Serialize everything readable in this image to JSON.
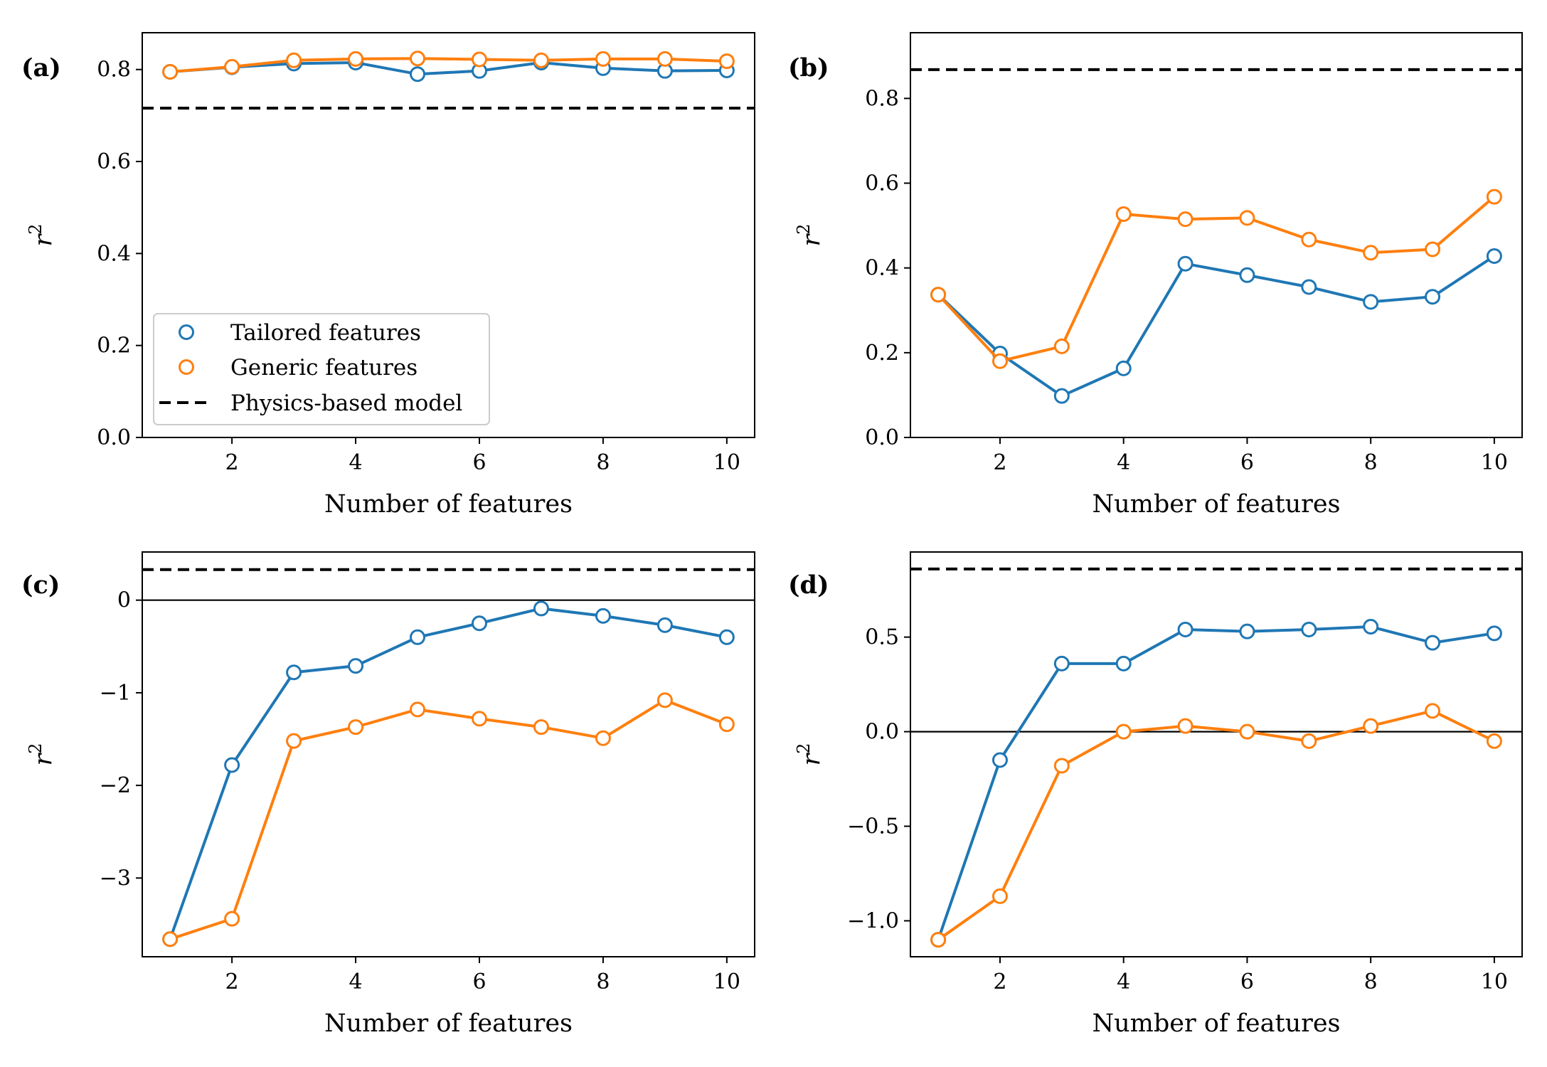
{
  "colors": {
    "tailored": "#1f77b4",
    "generic": "#ff7f0e",
    "physics": "#000000"
  },
  "legend": {
    "placement": "lower-left of panel (a)",
    "tailored_label": "Tailored features",
    "generic_label": "Generic features",
    "physics_label": "Physics-based model"
  },
  "chart_data": [
    {
      "type": "line",
      "panel_label": "(a)",
      "xlabel": "Number of features",
      "ylabel": "r",
      "ylabel_sup": "2",
      "xlim": [
        0.55,
        10.45
      ],
      "ylim": [
        0.0,
        0.88
      ],
      "xticks": [
        2,
        4,
        6,
        8,
        10
      ],
      "yticks": [
        0.0,
        0.2,
        0.4,
        0.6,
        0.8
      ],
      "ytick_labels": [
        "0.0",
        "0.2",
        "0.4",
        "0.6",
        "0.8"
      ],
      "x": [
        1,
        2,
        3,
        4,
        5,
        6,
        7,
        8,
        9,
        10
      ],
      "series": [
        {
          "name": "Tailored features",
          "values": [
            0.795,
            0.805,
            0.813,
            0.815,
            0.79,
            0.797,
            0.815,
            0.803,
            0.797,
            0.798
          ]
        },
        {
          "name": "Generic features",
          "values": [
            0.795,
            0.806,
            0.82,
            0.823,
            0.824,
            0.822,
            0.82,
            0.823,
            0.823,
            0.818
          ]
        }
      ],
      "physics_model": 0.716,
      "zero_line": false,
      "legend": true
    },
    {
      "type": "line",
      "panel_label": "(b)",
      "xlabel": "Number of features",
      "ylabel": "r",
      "ylabel_sup": "2",
      "xlim": [
        0.55,
        10.45
      ],
      "ylim": [
        0.0,
        0.955
      ],
      "xticks": [
        2,
        4,
        6,
        8,
        10
      ],
      "yticks": [
        0.0,
        0.2,
        0.4,
        0.6,
        0.8
      ],
      "ytick_labels": [
        "0.0",
        "0.2",
        "0.4",
        "0.6",
        "0.8"
      ],
      "x": [
        1,
        2,
        3,
        4,
        5,
        6,
        7,
        8,
        9,
        10
      ],
      "series": [
        {
          "name": "Tailored features",
          "values": [
            0.337,
            0.198,
            0.098,
            0.163,
            0.41,
            0.383,
            0.355,
            0.32,
            0.332,
            0.428
          ]
        },
        {
          "name": "Generic features",
          "values": [
            0.337,
            0.18,
            0.215,
            0.527,
            0.515,
            0.518,
            0.467,
            0.436,
            0.444,
            0.568
          ]
        }
      ],
      "physics_model": 0.868,
      "zero_line": false,
      "legend": false
    },
    {
      "type": "line",
      "panel_label": "(c)",
      "xlabel": "Number of features",
      "ylabel": "r",
      "ylabel_sup": "2",
      "xlim": [
        0.55,
        10.45
      ],
      "ylim": [
        -3.85,
        0.52
      ],
      "xticks": [
        2,
        4,
        6,
        8,
        10
      ],
      "yticks": [
        -3,
        -2,
        -1,
        0
      ],
      "ytick_labels": [
        "−3",
        "−2",
        "−1",
        "0"
      ],
      "x": [
        1,
        2,
        3,
        4,
        5,
        6,
        7,
        8,
        9,
        10
      ],
      "series": [
        {
          "name": "Tailored features",
          "values": [
            -3.66,
            -1.78,
            -0.78,
            -0.71,
            -0.4,
            -0.25,
            -0.09,
            -0.17,
            -0.27,
            -0.4
          ]
        },
        {
          "name": "Generic features",
          "values": [
            -3.66,
            -3.44,
            -1.52,
            -1.37,
            -1.18,
            -1.28,
            -1.37,
            -1.49,
            -1.08,
            -1.34
          ]
        }
      ],
      "physics_model": 0.33,
      "zero_line": true,
      "legend": false
    },
    {
      "type": "line",
      "panel_label": "(d)",
      "xlabel": "Number of features",
      "ylabel": "r",
      "ylabel_sup": "2",
      "xlim": [
        0.55,
        10.45
      ],
      "ylim": [
        -1.19,
        0.95
      ],
      "xticks": [
        2,
        4,
        6,
        8,
        10
      ],
      "yticks": [
        -1.0,
        -0.5,
        0.0,
        0.5
      ],
      "ytick_labels": [
        "−1.0",
        "−0.5",
        "0.0",
        "0.5"
      ],
      "x": [
        1,
        2,
        3,
        4,
        5,
        6,
        7,
        8,
        9,
        10
      ],
      "series": [
        {
          "name": "Tailored features",
          "values": [
            -1.1,
            -0.15,
            0.36,
            0.36,
            0.54,
            0.53,
            0.54,
            0.555,
            0.47,
            0.52
          ]
        },
        {
          "name": "Generic features",
          "values": [
            -1.1,
            -0.87,
            -0.18,
            0.0,
            0.03,
            0.0,
            -0.05,
            0.03,
            0.11,
            -0.05
          ]
        }
      ],
      "physics_model": 0.86,
      "zero_line": true,
      "legend": false
    }
  ]
}
